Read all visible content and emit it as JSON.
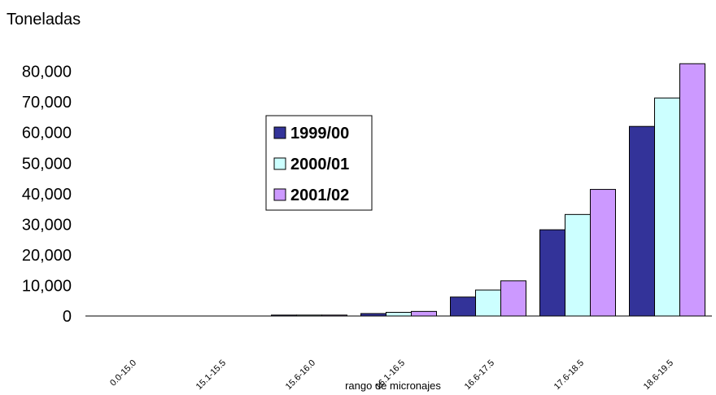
{
  "chart_data": {
    "type": "bar",
    "ylabel": "Toneladas",
    "xlabel": "rango de micronajes",
    "categories": [
      "0.0-15.0",
      "15.1-15.5",
      "15.6-16.0",
      "16.1-16.5",
      "16.6-17.5",
      "17.6-18.5",
      "18.6-19.5"
    ],
    "ylim": [
      0,
      80000
    ],
    "yticks": [
      0,
      10000,
      20000,
      30000,
      40000,
      50000,
      60000,
      70000,
      80000
    ],
    "ytick_labels": [
      "0",
      "10,000",
      "20,000",
      "30,000",
      "40,000",
      "50,000",
      "60,000",
      "70,000",
      "80,000"
    ],
    "series": [
      {
        "name": "1999/00",
        "color": "#333399",
        "values": [
          0,
          0,
          300,
          800,
          6200,
          28200,
          62000
        ]
      },
      {
        "name": "2000/01",
        "color": "#ccffff",
        "values": [
          0,
          0,
          300,
          1200,
          8500,
          33200,
          71300
        ]
      },
      {
        "name": "2001/02",
        "color": "#cc99ff",
        "values": [
          0,
          0,
          300,
          1500,
          11500,
          41400,
          82500
        ]
      }
    ],
    "legend_position": "center-left",
    "grid": false
  }
}
